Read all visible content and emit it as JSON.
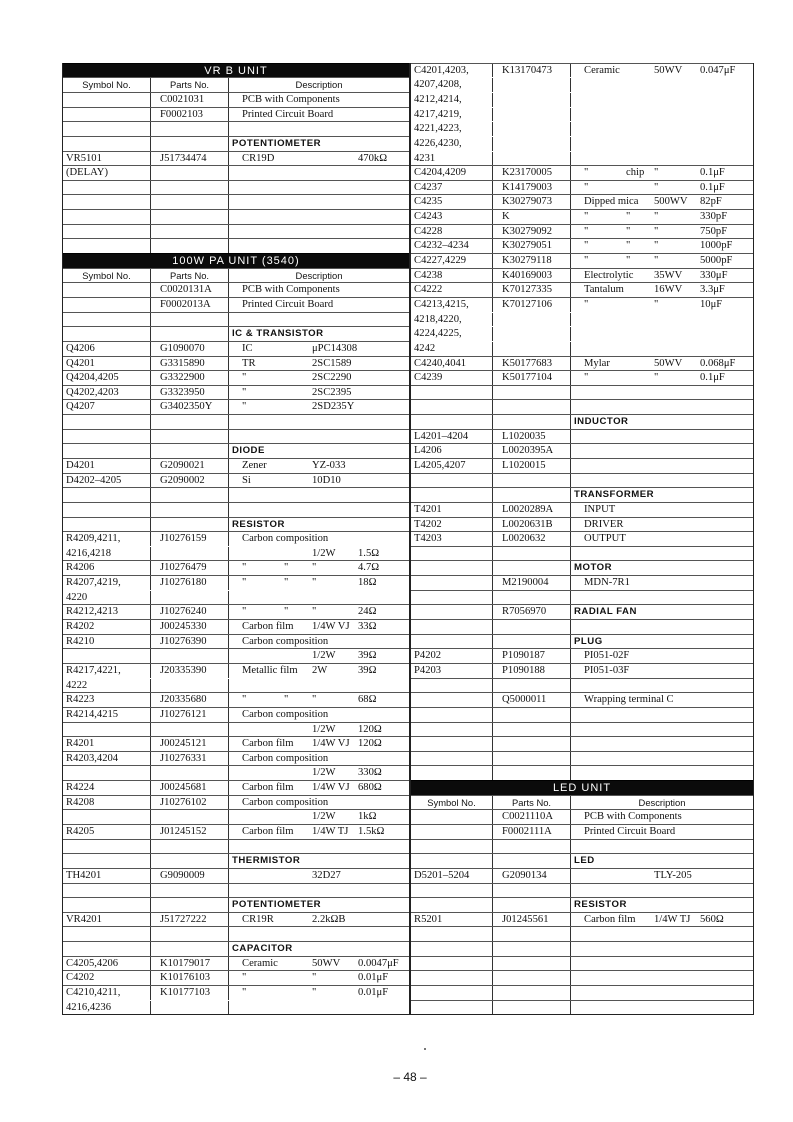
{
  "columns": [
    "Symbol No.",
    "Parts No.",
    "Description"
  ],
  "left": {
    "rows": [
      {
        "unit": "VR B UNIT"
      },
      {
        "colhead": true
      },
      {
        "p": "C0021031",
        "d": [
          "PCB with Components"
        ]
      },
      {
        "p": "F0002103",
        "d": [
          "Printed Circuit Board"
        ]
      },
      {},
      {
        "cat": "POTENTIOMETER"
      },
      {
        "s": "VR5101",
        "p": "J51734474",
        "d": [
          "CR19D",
          "",
          "",
          "470kΩ"
        ]
      },
      {
        "s": "(DELAY)"
      },
      {},
      {},
      {},
      {},
      {},
      {
        "unit": "100W PA UNIT (3540)"
      },
      {
        "colhead": true
      },
      {
        "p": "C0020131A",
        "d": [
          "PCB with Components"
        ]
      },
      {
        "p": "F0002013A",
        "d": [
          "Printed Circuit Board"
        ]
      },
      {},
      {
        "cat": "IC & TRANSISTOR"
      },
      {
        "s": "Q4206",
        "p": "G1090070",
        "d": [
          "IC",
          "",
          "μPC14308"
        ]
      },
      {
        "s": "Q4201",
        "p": "G3315890",
        "d": [
          "TR",
          "",
          "2SC1589"
        ]
      },
      {
        "s": "Q4204,4205",
        "p": "G3322900",
        "d": [
          "\"",
          "",
          "2SC2290"
        ]
      },
      {
        "s": "Q4202,4203",
        "p": "G3323950",
        "d": [
          "\"",
          "",
          "2SC2395"
        ]
      },
      {
        "s": "Q4207",
        "p": "G3402350Y",
        "d": [
          "\"",
          "",
          "2SD235Y"
        ]
      },
      {},
      {},
      {
        "cat": "DIODE"
      },
      {
        "s": "D4201",
        "p": "G2090021",
        "d": [
          "Zener",
          "",
          "YZ-033"
        ]
      },
      {
        "s": "D4202–4205",
        "p": "G2090002",
        "d": [
          "Si",
          "",
          "10D10"
        ]
      },
      {},
      {},
      {
        "cat": "RESISTOR"
      },
      {
        "s": "R4209,4211,",
        "p": "J10276159",
        "d": [
          "Carbon composition"
        ]
      },
      {
        "s": " 4216,4218",
        "c": true,
        "d": [
          "",
          "",
          "1/2W",
          "1.5Ω"
        ]
      },
      {
        "s": "R4206",
        "p": "J10276479",
        "d": [
          "\"",
          "\"",
          "\"",
          "4.7Ω"
        ]
      },
      {
        "s": "R4207,4219,",
        "p": "J10276180",
        "d": [
          "\"",
          "\"",
          "\"",
          "18Ω"
        ]
      },
      {
        "s": " 4220",
        "c": true
      },
      {
        "s": "R4212,4213",
        "p": "J10276240",
        "d": [
          "\"",
          "\"",
          "\"",
          "24Ω"
        ]
      },
      {
        "s": "R4202",
        "p": "J00245330",
        "d": [
          "Carbon film",
          "",
          "1/4W VJ",
          "33Ω"
        ]
      },
      {
        "s": "R4210",
        "p": "J10276390",
        "d": [
          "Carbon composition"
        ]
      },
      {
        "d": [
          "",
          "",
          "1/2W",
          "39Ω"
        ]
      },
      {
        "s": "R4217,4221,",
        "p": "J20335390",
        "d": [
          "Metallic film",
          "",
          "2W",
          "39Ω"
        ]
      },
      {
        "s": " 4222",
        "c": true
      },
      {
        "s": "R4223",
        "p": "J20335680",
        "d": [
          "\"",
          "\"",
          "\"",
          "68Ω"
        ]
      },
      {
        "s": "R4214,4215",
        "p": "J10276121",
        "d": [
          "Carbon composition"
        ]
      },
      {
        "d": [
          "",
          "",
          "1/2W",
          "120Ω"
        ]
      },
      {
        "s": "R4201",
        "p": "J00245121",
        "d": [
          "Carbon film",
          "",
          "1/4W VJ",
          "120Ω"
        ]
      },
      {
        "s": "R4203,4204",
        "p": "J10276331",
        "d": [
          "Carbon composition"
        ]
      },
      {
        "d": [
          "",
          "",
          "1/2W",
          "330Ω"
        ]
      },
      {
        "s": "R4224",
        "p": "J00245681",
        "d": [
          "Carbon film",
          "",
          "1/4W VJ",
          "680Ω"
        ]
      },
      {
        "s": "R4208",
        "p": "J10276102",
        "d": [
          "Carbon composition"
        ]
      },
      {
        "d": [
          "",
          "",
          "1/2W",
          "1kΩ"
        ]
      },
      {
        "s": "R4205",
        "p": "J01245152",
        "d": [
          "Carbon film",
          "",
          "1/4W TJ",
          "1.5kΩ"
        ]
      },
      {},
      {
        "cat": "THERMISTOR"
      },
      {
        "s": "TH4201",
        "p": "G9090009",
        "d": [
          "",
          "",
          "32D27"
        ]
      },
      {},
      {
        "cat": "POTENTIOMETER"
      },
      {
        "s": "VR4201",
        "p": "J51727222",
        "d": [
          "CR19R",
          "",
          "2.2kΩB"
        ]
      },
      {},
      {
        "cat": "CAPACITOR"
      },
      {
        "s": "C4205,4206",
        "p": "K10179017",
        "d": [
          "Ceramic",
          "",
          "50WV",
          "0.0047μF"
        ]
      },
      {
        "s": "C4202",
        "p": "K10176103",
        "d": [
          "\"",
          "",
          "\"",
          "0.01μF"
        ]
      },
      {
        "s": "C4210,4211,",
        "p": "K10177103",
        "d": [
          "\"",
          "",
          "\"",
          "0.01μF"
        ]
      },
      {
        "s": " 4216,4236",
        "c": true
      }
    ]
  },
  "right": {
    "rows": [
      {
        "s": "C4201,4203,",
        "p": "K13170473",
        "d": [
          "Ceramic",
          "",
          "50WV",
          "0.047μF"
        ]
      },
      {
        "s": " 4207,4208,",
        "c": true
      },
      {
        "s": " 4212,4214,",
        "c": true
      },
      {
        "s": " 4217,4219,",
        "c": true
      },
      {
        "s": " 4221,4223,",
        "c": true
      },
      {
        "s": " 4226,4230,",
        "c": true
      },
      {
        "s": " 4231",
        "c": true
      },
      {
        "s": "C4204,4209",
        "p": "K23170005",
        "d": [
          "\"",
          "chip",
          "\"",
          "0.1μF"
        ]
      },
      {
        "s": "C4237",
        "p": "K14179003",
        "d": [
          "\"",
          "",
          "\"",
          "0.1μF"
        ]
      },
      {
        "s": "C4235",
        "p": "K30279073",
        "d": [
          "Dipped mica",
          "",
          "500WV",
          "82pF"
        ]
      },
      {
        "s": "C4243",
        "p": "K",
        "d": [
          "\"",
          "\"",
          "\"",
          "330pF"
        ]
      },
      {
        "s": "C4228",
        "p": "K30279092",
        "d": [
          "\"",
          "\"",
          "\"",
          "750pF"
        ]
      },
      {
        "s": "C4232–4234",
        "p": "K30279051",
        "d": [
          "\"",
          "\"",
          "\"",
          "1000pF"
        ]
      },
      {
        "s": "C4227,4229",
        "p": "K30279118",
        "d": [
          "\"",
          "\"",
          "\"",
          "5000pF"
        ]
      },
      {
        "s": "C4238",
        "p": "K40169003",
        "d": [
          "Electrolytic",
          "",
          "35WV",
          "330μF"
        ]
      },
      {
        "s": "C4222",
        "p": "K70127335",
        "d": [
          "Tantalum",
          "",
          "16WV",
          "3.3μF"
        ]
      },
      {
        "s": "C4213,4215,",
        "p": "K70127106",
        "d": [
          "\"",
          "",
          "\"",
          "10μF"
        ]
      },
      {
        "s": " 4218,4220,",
        "c": true
      },
      {
        "s": " 4224,4225,",
        "c": true
      },
      {
        "s": " 4242",
        "c": true
      },
      {
        "s": "C4240,4041",
        "p": "K50177683",
        "d": [
          "Mylar",
          "",
          "50WV",
          "0.068μF"
        ]
      },
      {
        "s": "C4239",
        "p": "K50177104",
        "d": [
          "\"",
          "",
          "\"",
          "0.1μF"
        ]
      },
      {},
      {},
      {
        "cat": "INDUCTOR"
      },
      {
        "s": "L4201–4204",
        "p": "L1020035"
      },
      {
        "s": "L4206",
        "p": "L0020395A"
      },
      {
        "s": "L4205,4207",
        "p": "L1020015"
      },
      {},
      {
        "cat": "TRANSFORMER"
      },
      {
        "s": "T4201",
        "p": "L0020289A",
        "d": [
          "INPUT"
        ]
      },
      {
        "s": "T4202",
        "p": "L0020631B",
        "d": [
          "DRIVER"
        ]
      },
      {
        "s": "T4203",
        "p": "L0020632",
        "d": [
          "OUTPUT"
        ]
      },
      {},
      {
        "cat": "MOTOR"
      },
      {
        "p": "M2190004",
        "d": [
          "MDN-7R1"
        ]
      },
      {},
      {
        "p": "R7056970",
        "cat": "RADIAL FAN"
      },
      {},
      {
        "cat": "PLUG"
      },
      {
        "s": "P4202",
        "p": "P1090187",
        "d": [
          "PI051-02F"
        ]
      },
      {
        "s": "P4203",
        "p": "P1090188",
        "d": [
          "PI051-03F"
        ]
      },
      {},
      {
        "p": "Q5000011",
        "d": [
          "Wrapping terminal C"
        ]
      },
      {},
      {},
      {},
      {},
      {},
      {
        "unit": "LED UNIT"
      },
      {
        "colhead": true
      },
      {
        "p": "C0021110A",
        "d": [
          "PCB with Components"
        ]
      },
      {
        "p": "F0002111A",
        "d": [
          "Printed Circuit Board"
        ]
      },
      {},
      {
        "cat": "LED"
      },
      {
        "s": "D5201–5204",
        "p": "G2090134",
        "d": [
          "",
          "",
          "TLY-205"
        ]
      },
      {},
      {
        "cat": "RESISTOR"
      },
      {
        "s": "R5201",
        "p": "J01245561",
        "d": [
          "Carbon film",
          "",
          "1/4W TJ",
          "560Ω"
        ]
      },
      {},
      {},
      {},
      {},
      {},
      {}
    ]
  },
  "footer": {
    "page_number": "– 48 –"
  }
}
